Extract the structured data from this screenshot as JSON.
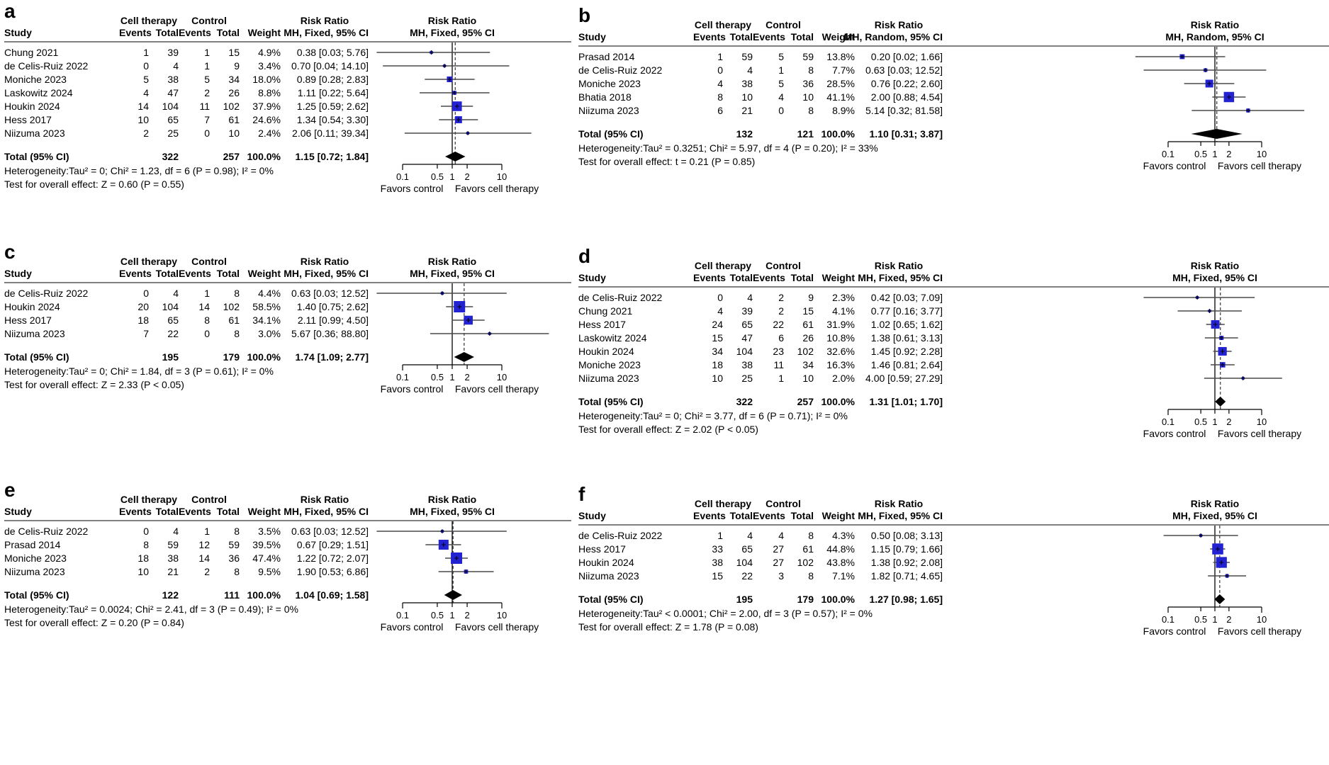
{
  "shared": {
    "col_headers": {
      "study": "Study",
      "events": "Events",
      "total": "Total",
      "weight": "Weight"
    },
    "group_headers": {
      "cell": "Cell therapy",
      "control": "Control",
      "rr": "Risk Ratio"
    },
    "favors_left": "Favors control",
    "favors_right": "Favors cell therapy",
    "colors": {
      "marker": "#2222D2",
      "ci_line": "#4a4a4a",
      "rule": "#808080",
      "diamond": "#000000",
      "axis": "#000000"
    }
  },
  "chart_data": [
    {
      "type": "forest",
      "label": "a",
      "rr_header": "Risk Ratio",
      "model_header": "MH, Fixed, 95% CI",
      "axis": {
        "scale": "log",
        "range": [
          0.1,
          10
        ],
        "ticks": [
          0.1,
          0.5,
          1,
          2,
          10
        ]
      },
      "studies": [
        {
          "name": "Chung 2021",
          "events_t": 1,
          "total_t": 39,
          "events_c": 1,
          "total_c": 15,
          "weight": "4.9%",
          "weight_pct": 4.9,
          "rr": 0.38,
          "lcl": 0.03,
          "ucl": 5.76,
          "ci_label": "0.38 [0.03; 5.76]"
        },
        {
          "name": "de Celis-Ruiz 2022",
          "events_t": 0,
          "total_t": 4,
          "events_c": 1,
          "total_c": 9,
          "weight": "3.4%",
          "weight_pct": 3.4,
          "rr": 0.7,
          "lcl": 0.04,
          "ucl": 14.1,
          "ci_label": "0.70 [0.04; 14.10]"
        },
        {
          "name": "Moniche 2023",
          "events_t": 5,
          "total_t": 38,
          "events_c": 5,
          "total_c": 34,
          "weight": "18.0%",
          "weight_pct": 18.0,
          "rr": 0.89,
          "lcl": 0.28,
          "ucl": 2.83,
          "ci_label": "0.89 [0.28; 2.83]"
        },
        {
          "name": "Laskowitz 2024",
          "events_t": 4,
          "total_t": 47,
          "events_c": 2,
          "total_c": 26,
          "weight": "8.8%",
          "weight_pct": 8.8,
          "rr": 1.11,
          "lcl": 0.22,
          "ucl": 5.64,
          "ci_label": "1.11 [0.22; 5.64]"
        },
        {
          "name": "Houkin 2024",
          "events_t": 14,
          "total_t": 104,
          "events_c": 11,
          "total_c": 102,
          "weight": "37.9%",
          "weight_pct": 37.9,
          "rr": 1.25,
          "lcl": 0.59,
          "ucl": 2.62,
          "ci_label": "1.25 [0.59; 2.62]"
        },
        {
          "name": "Hess 2017",
          "events_t": 10,
          "total_t": 65,
          "events_c": 7,
          "total_c": 61,
          "weight": "24.6%",
          "weight_pct": 24.6,
          "rr": 1.34,
          "lcl": 0.54,
          "ucl": 3.3,
          "ci_label": "1.34 [0.54; 3.30]"
        },
        {
          "name": "Niizuma 2023",
          "events_t": 2,
          "total_t": 25,
          "events_c": 0,
          "total_c": 10,
          "weight": "2.4%",
          "weight_pct": 2.4,
          "rr": 2.06,
          "lcl": 0.11,
          "ucl": 39.34,
          "ci_label": "2.06 [0.11; 39.34]"
        }
      ],
      "total": {
        "label": "Total (95% CI)",
        "total_t": 322,
        "total_c": 257,
        "weight": "100.0%",
        "rr": 1.15,
        "lcl": 0.72,
        "ucl": 1.84,
        "ci_label": "1.15 [0.72; 1.84]"
      },
      "heterogeneity": "Heterogeneity:Tau² = 0; Chi² = 1.23, df = 6 (P = 0.98); I² = 0%",
      "overall_test": "Test for overall effect: Z = 0.60 (P = 0.55)"
    },
    {
      "type": "forest",
      "label": "b",
      "rr_header": "Risk Ratio",
      "model_header": "MH, Random, 95% CI",
      "axis": {
        "scale": "log",
        "range": [
          0.1,
          10
        ],
        "ticks": [
          0.1,
          0.5,
          1,
          2,
          10
        ]
      },
      "studies": [
        {
          "name": "Prasad 2014",
          "events_t": 1,
          "total_t": 59,
          "events_c": 5,
          "total_c": 59,
          "weight": "13.8%",
          "weight_pct": 13.8,
          "rr": 0.2,
          "lcl": 0.02,
          "ucl": 1.66,
          "ci_label": "0.20 [0.02; 1.66]"
        },
        {
          "name": "de Celis-Ruiz 2022",
          "events_t": 0,
          "total_t": 4,
          "events_c": 1,
          "total_c": 8,
          "weight": "7.7%",
          "weight_pct": 7.7,
          "rr": 0.63,
          "lcl": 0.03,
          "ucl": 12.52,
          "ci_label": "0.63 [0.03; 12.52]"
        },
        {
          "name": "Moniche 2023",
          "events_t": 4,
          "total_t": 38,
          "events_c": 5,
          "total_c": 36,
          "weight": "28.5%",
          "weight_pct": 28.5,
          "rr": 0.76,
          "lcl": 0.22,
          "ucl": 2.6,
          "ci_label": "0.76 [0.22; 2.60]"
        },
        {
          "name": "Bhatia 2018",
          "events_t": 8,
          "total_t": 10,
          "events_c": 4,
          "total_c": 10,
          "weight": "41.1%",
          "weight_pct": 41.1,
          "rr": 2.0,
          "lcl": 0.88,
          "ucl": 4.54,
          "ci_label": "2.00 [0.88; 4.54]"
        },
        {
          "name": "Niizuma 2023",
          "events_t": 6,
          "total_t": 21,
          "events_c": 0,
          "total_c": 8,
          "weight": "8.9%",
          "weight_pct": 8.9,
          "rr": 5.14,
          "lcl": 0.32,
          "ucl": 81.58,
          "ci_label": "5.14 [0.32; 81.58]"
        }
      ],
      "total": {
        "label": "Total (95% CI)",
        "total_t": 132,
        "total_c": 121,
        "weight": "100.0%",
        "rr": 1.1,
        "lcl": 0.31,
        "ucl": 3.87,
        "ci_label": "1.10 [0.31; 3.87]"
      },
      "heterogeneity": "Heterogeneity:Tau² = 0.3251; Chi² = 5.97, df = 4 (P = 0.20); I² = 33%",
      "overall_test": "Test for overall effect: t = 0.21 (P = 0.85)"
    },
    {
      "type": "forest",
      "label": "c",
      "rr_header": "Risk Ratio",
      "model_header": "MH, Fixed, 95% CI",
      "axis": {
        "scale": "log",
        "range": [
          0.1,
          10
        ],
        "ticks": [
          0.1,
          0.5,
          1,
          2,
          10
        ]
      },
      "studies": [
        {
          "name": "de Celis-Ruiz 2022",
          "events_t": 0,
          "total_t": 4,
          "events_c": 1,
          "total_c": 8,
          "weight": "4.4%",
          "weight_pct": 4.4,
          "rr": 0.63,
          "lcl": 0.03,
          "ucl": 12.52,
          "ci_label": "0.63 [0.03; 12.52]"
        },
        {
          "name": "Houkin 2024",
          "events_t": 20,
          "total_t": 104,
          "events_c": 14,
          "total_c": 102,
          "weight": "58.5%",
          "weight_pct": 58.5,
          "rr": 1.4,
          "lcl": 0.75,
          "ucl": 2.62,
          "ci_label": "1.40 [0.75; 2.62]"
        },
        {
          "name": "Hess 2017",
          "events_t": 18,
          "total_t": 65,
          "events_c": 8,
          "total_c": 61,
          "weight": "34.1%",
          "weight_pct": 34.1,
          "rr": 2.11,
          "lcl": 0.99,
          "ucl": 4.5,
          "ci_label": "2.11 [0.99; 4.50]"
        },
        {
          "name": "Niizuma 2023",
          "events_t": 7,
          "total_t": 22,
          "events_c": 0,
          "total_c": 8,
          "weight": "3.0%",
          "weight_pct": 3.0,
          "rr": 5.67,
          "lcl": 0.36,
          "ucl": 88.8,
          "ci_label": "5.67 [0.36; 88.80]"
        }
      ],
      "total": {
        "label": "Total (95% CI)",
        "total_t": 195,
        "total_c": 179,
        "weight": "100.0%",
        "rr": 1.74,
        "lcl": 1.09,
        "ucl": 2.77,
        "ci_label": "1.74 [1.09; 2.77]"
      },
      "heterogeneity": "Heterogeneity:Tau² = 0; Chi² = 1.84, df = 3 (P = 0.61); I² = 0%",
      "overall_test": "Test for overall effect: Z = 2.33 (P < 0.05)"
    },
    {
      "type": "forest",
      "label": "d",
      "rr_header": "Risk Ratio",
      "model_header": "MH, Fixed, 95% CI",
      "axis": {
        "scale": "log",
        "range": [
          0.1,
          10
        ],
        "ticks": [
          0.1,
          0.5,
          1,
          2,
          10
        ]
      },
      "studies": [
        {
          "name": "de Celis-Ruiz 2022",
          "events_t": 0,
          "total_t": 4,
          "events_c": 2,
          "total_c": 9,
          "weight": "2.3%",
          "weight_pct": 2.3,
          "rr": 0.42,
          "lcl": 0.03,
          "ucl": 7.09,
          "ci_label": "0.42 [0.03; 7.09]"
        },
        {
          "name": "Chung 2021",
          "events_t": 4,
          "total_t": 39,
          "events_c": 2,
          "total_c": 15,
          "weight": "4.1%",
          "weight_pct": 4.1,
          "rr": 0.77,
          "lcl": 0.16,
          "ucl": 3.77,
          "ci_label": "0.77 [0.16; 3.77]"
        },
        {
          "name": "Hess 2017",
          "events_t": 24,
          "total_t": 65,
          "events_c": 22,
          "total_c": 61,
          "weight": "31.9%",
          "weight_pct": 31.9,
          "rr": 1.02,
          "lcl": 0.65,
          "ucl": 1.62,
          "ci_label": "1.02 [0.65; 1.62]"
        },
        {
          "name": "Laskowitz 2024",
          "events_t": 15,
          "total_t": 47,
          "events_c": 6,
          "total_c": 26,
          "weight": "10.8%",
          "weight_pct": 10.8,
          "rr": 1.38,
          "lcl": 0.61,
          "ucl": 3.13,
          "ci_label": "1.38 [0.61; 3.13]"
        },
        {
          "name": "Houkin 2024",
          "events_t": 34,
          "total_t": 104,
          "events_c": 23,
          "total_c": 102,
          "weight": "32.6%",
          "weight_pct": 32.6,
          "rr": 1.45,
          "lcl": 0.92,
          "ucl": 2.28,
          "ci_label": "1.45 [0.92; 2.28]"
        },
        {
          "name": "Moniche 2023",
          "events_t": 18,
          "total_t": 38,
          "events_c": 11,
          "total_c": 34,
          "weight": "16.3%",
          "weight_pct": 16.3,
          "rr": 1.46,
          "lcl": 0.81,
          "ucl": 2.64,
          "ci_label": "1.46 [0.81; 2.64]"
        },
        {
          "name": "Niizuma 2023",
          "events_t": 10,
          "total_t": 25,
          "events_c": 1,
          "total_c": 10,
          "weight": "2.0%",
          "weight_pct": 2.0,
          "rr": 4.0,
          "lcl": 0.59,
          "ucl": 27.29,
          "ci_label": "4.00 [0.59; 27.29]"
        }
      ],
      "total": {
        "label": "Total (95% CI)",
        "total_t": 322,
        "total_c": 257,
        "weight": "100.0%",
        "rr": 1.31,
        "lcl": 1.01,
        "ucl": 1.7,
        "ci_label": "1.31 [1.01; 1.70]"
      },
      "heterogeneity": "Heterogeneity:Tau² = 0; Chi² = 3.77, df = 6 (P = 0.71); I² = 0%",
      "overall_test": "Test for overall effect: Z = 2.02 (P < 0.05)"
    },
    {
      "type": "forest",
      "label": "e",
      "rr_header": "Risk Ratio",
      "model_header": "MH, Fixed, 95% CI",
      "axis": {
        "scale": "log",
        "range": [
          0.1,
          10
        ],
        "ticks": [
          0.1,
          0.5,
          1,
          2,
          10
        ]
      },
      "studies": [
        {
          "name": "de Celis-Ruiz 2022",
          "events_t": 0,
          "total_t": 4,
          "events_c": 1,
          "total_c": 8,
          "weight": "3.5%",
          "weight_pct": 3.5,
          "rr": 0.63,
          "lcl": 0.03,
          "ucl": 12.52,
          "ci_label": "0.63 [0.03; 12.52]"
        },
        {
          "name": "Prasad 2014",
          "events_t": 8,
          "total_t": 59,
          "events_c": 12,
          "total_c": 59,
          "weight": "39.5%",
          "weight_pct": 39.5,
          "rr": 0.67,
          "lcl": 0.29,
          "ucl": 1.51,
          "ci_label": "0.67 [0.29; 1.51]"
        },
        {
          "name": "Moniche 2023",
          "events_t": 18,
          "total_t": 38,
          "events_c": 14,
          "total_c": 36,
          "weight": "47.4%",
          "weight_pct": 47.4,
          "rr": 1.22,
          "lcl": 0.72,
          "ucl": 2.07,
          "ci_label": "1.22 [0.72; 2.07]"
        },
        {
          "name": "Niizuma 2023",
          "events_t": 10,
          "total_t": 21,
          "events_c": 2,
          "total_c": 8,
          "weight": "9.5%",
          "weight_pct": 9.5,
          "rr": 1.9,
          "lcl": 0.53,
          "ucl": 6.86,
          "ci_label": "1.90 [0.53; 6.86]"
        }
      ],
      "total": {
        "label": "Total (95% CI)",
        "total_t": 122,
        "total_c": 111,
        "weight": "100.0%",
        "rr": 1.04,
        "lcl": 0.69,
        "ucl": 1.58,
        "ci_label": "1.04 [0.69; 1.58]"
      },
      "heterogeneity": "Heterogeneity:Tau² = 0.0024; Chi² = 2.41, df = 3 (P = 0.49); I² = 0%",
      "overall_test": "Test for overall effect: Z = 0.20 (P = 0.84)"
    },
    {
      "type": "forest",
      "label": "f",
      "rr_header": "Risk Ratio",
      "model_header": "MH, Fixed, 95% CI",
      "axis": {
        "scale": "log",
        "range": [
          0.1,
          10
        ],
        "ticks": [
          0.1,
          0.5,
          1,
          2,
          10
        ]
      },
      "studies": [
        {
          "name": "de Celis-Ruiz 2022",
          "events_t": 1,
          "total_t": 4,
          "events_c": 4,
          "total_c": 8,
          "weight": "4.3%",
          "weight_pct": 4.3,
          "rr": 0.5,
          "lcl": 0.08,
          "ucl": 3.13,
          "ci_label": "0.50 [0.08; 3.13]"
        },
        {
          "name": "Hess 2017",
          "events_t": 33,
          "total_t": 65,
          "events_c": 27,
          "total_c": 61,
          "weight": "44.8%",
          "weight_pct": 44.8,
          "rr": 1.15,
          "lcl": 0.79,
          "ucl": 1.66,
          "ci_label": "1.15 [0.79; 1.66]"
        },
        {
          "name": "Houkin 2024",
          "events_t": 38,
          "total_t": 104,
          "events_c": 27,
          "total_c": 102,
          "weight": "43.8%",
          "weight_pct": 43.8,
          "rr": 1.38,
          "lcl": 0.92,
          "ucl": 2.08,
          "ci_label": "1.38 [0.92; 2.08]"
        },
        {
          "name": "Niizuma 2023",
          "events_t": 15,
          "total_t": 22,
          "events_c": 3,
          "total_c": 8,
          "weight": "7.1%",
          "weight_pct": 7.1,
          "rr": 1.82,
          "lcl": 0.71,
          "ucl": 4.65,
          "ci_label": "1.82 [0.71; 4.65]"
        }
      ],
      "total": {
        "label": "Total (95% CI)",
        "total_t": 195,
        "total_c": 179,
        "weight": "100.0%",
        "rr": 1.27,
        "lcl": 0.98,
        "ucl": 1.65,
        "ci_label": "1.27 [0.98; 1.65]"
      },
      "heterogeneity": "Heterogeneity:Tau² < 0.0001; Chi² = 2.00, df = 3 (P = 0.57); I² = 0%",
      "overall_test": "Test for overall effect: Z = 1.78 (P = 0.08)"
    }
  ]
}
